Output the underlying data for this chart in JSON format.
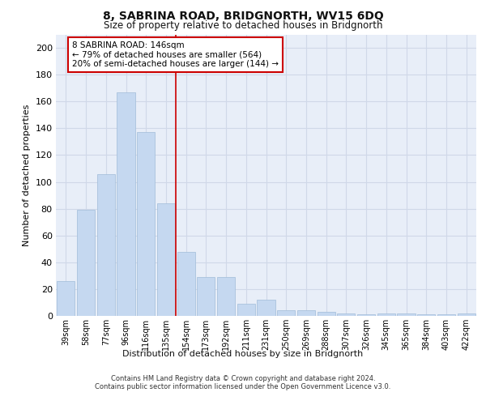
{
  "title": "8, SABRINA ROAD, BRIDGNORTH, WV15 6DQ",
  "subtitle": "Size of property relative to detached houses in Bridgnorth",
  "xlabel": "Distribution of detached houses by size in Bridgnorth",
  "ylabel": "Number of detached properties",
  "categories": [
    "39sqm",
    "58sqm",
    "77sqm",
    "96sqm",
    "116sqm",
    "135sqm",
    "154sqm",
    "173sqm",
    "192sqm",
    "211sqm",
    "231sqm",
    "250sqm",
    "269sqm",
    "288sqm",
    "307sqm",
    "326sqm",
    "345sqm",
    "365sqm",
    "384sqm",
    "403sqm",
    "422sqm"
  ],
  "values": [
    26,
    79,
    106,
    167,
    137,
    84,
    48,
    29,
    29,
    9,
    12,
    4,
    4,
    3,
    2,
    1,
    2,
    2,
    1,
    1,
    2
  ],
  "bar_color": "#c5d8f0",
  "bar_edge_color": "#a0bcd8",
  "grid_color": "#d0d8e8",
  "background_color": "#e8eef8",
  "property_line_x": 5.5,
  "annotation_text": "8 SABRINA ROAD: 146sqm\n← 79% of detached houses are smaller (564)\n20% of semi-detached houses are larger (144) →",
  "annotation_box_color": "#cc0000",
  "ylim": [
    0,
    210
  ],
  "yticks": [
    0,
    20,
    40,
    60,
    80,
    100,
    120,
    140,
    160,
    180,
    200
  ],
  "footer_line1": "Contains HM Land Registry data © Crown copyright and database right 2024.",
  "footer_line2": "Contains public sector information licensed under the Open Government Licence v3.0."
}
